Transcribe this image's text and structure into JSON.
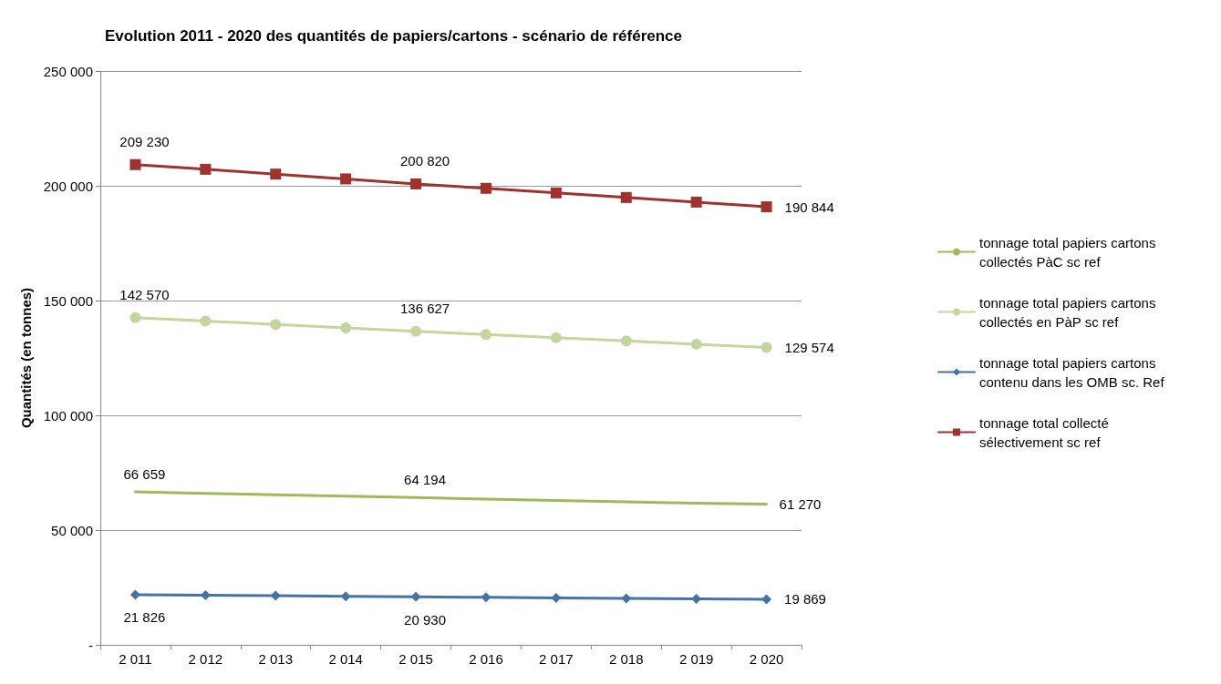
{
  "chart_data": {
    "type": "line",
    "title": "Evolution 2011 - 2020 des quantités de papiers/cartons - scénario de référence",
    "ylabel": "Quantités (en tonnes)",
    "categories": [
      "2 011",
      "2 012",
      "2 013",
      "2 014",
      "2 015",
      "2 016",
      "2 017",
      "2 018",
      "2 019",
      "2 020"
    ],
    "series": [
      {
        "name": "tonnage total papiers cartons collectés PàC sc ref",
        "color": "#9bbb59",
        "marker": "none",
        "values": [
          66659,
          66000,
          65400,
          64800,
          64194,
          63500,
          62900,
          62300,
          61700,
          61270
        ],
        "value_labels": [
          "66 659",
          null,
          null,
          null,
          "64 194",
          null,
          null,
          null,
          null,
          "61 270"
        ]
      },
      {
        "name": "tonnage total papiers cartons collectés en PàP sc ref",
        "color": "#c3d69b",
        "marker": "circle",
        "values": [
          142570,
          141100,
          139600,
          138100,
          136627,
          135200,
          133800,
          132400,
          131000,
          129574
        ],
        "value_labels": [
          "142 570",
          null,
          null,
          null,
          "136 627",
          null,
          null,
          null,
          null,
          "129 574"
        ]
      },
      {
        "name": "tonnage total papiers cartons contenu dans les OMB sc. Ref",
        "color": "#4572a7",
        "marker": "diamond",
        "values": [
          21826,
          21600,
          21400,
          21100,
          20930,
          20700,
          20400,
          20200,
          20000,
          19869
        ],
        "value_labels": [
          "21 826",
          null,
          null,
          null,
          "20 930",
          null,
          null,
          null,
          null,
          "19 869"
        ]
      },
      {
        "name": "tonnage total collecté sélectivement sc ref",
        "color": "#a0312d",
        "marker": "square",
        "values": [
          209230,
          207200,
          205100,
          203000,
          200820,
          198900,
          196900,
          194900,
          192900,
          190844
        ],
        "value_labels": [
          "209 230",
          null,
          null,
          null,
          "200 820",
          null,
          null,
          null,
          null,
          "190 844"
        ]
      }
    ],
    "ylim": [
      0,
      250000
    ],
    "yticks": [
      {
        "value": 0,
        "label": "-"
      },
      {
        "value": 50000,
        "label": "50 000"
      },
      {
        "value": 100000,
        "label": "100 000"
      },
      {
        "value": 150000,
        "label": "150 000"
      },
      {
        "value": 200000,
        "label": "200 000"
      },
      {
        "value": 250000,
        "label": "250 000"
      }
    ],
    "grid": "y",
    "legend": "right",
    "line_style": "solid"
  }
}
